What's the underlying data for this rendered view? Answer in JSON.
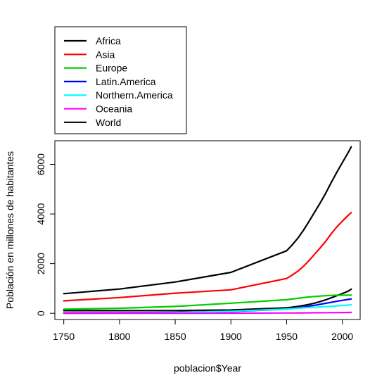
{
  "chart_data": {
    "type": "line",
    "title": "",
    "xlabel": "poblacion$Year",
    "ylabel": "Población en millones de habitantes",
    "x": [
      1750,
      1800,
      1850,
      1900,
      1950,
      1955,
      1960,
      1965,
      1970,
      1975,
      1980,
      1985,
      1990,
      1995,
      2000,
      2005,
      2008
    ],
    "xlim": [
      1742,
      2016
    ],
    "ylim": [
      -250,
      6950
    ],
    "xticks": [
      1750,
      1800,
      1850,
      1900,
      1950,
      2000
    ],
    "yticks": [
      0,
      2000,
      4000,
      6000
    ],
    "grid": false,
    "legend_position": "top-left",
    "series": [
      {
        "name": "Africa",
        "color": "#000000",
        "values": [
          106,
          107,
          111,
          133,
          221,
          247,
          277,
          314,
          357,
          408,
          469,
          541,
          622,
          707,
          796,
          888,
          973
        ]
      },
      {
        "name": "Asia",
        "color": "#ff0000",
        "values": [
          502,
          635,
          809,
          947,
          1402,
          1542,
          1694,
          1887,
          2120,
          2378,
          2626,
          2897,
          3202,
          3475,
          3714,
          3937,
          4054
        ]
      },
      {
        "name": "Europe",
        "color": "#00cd00",
        "values": [
          163,
          203,
          276,
          408,
          547,
          575,
          603,
          632,
          656,
          676,
          693,
          707,
          721,
          727,
          728,
          731,
          732
        ]
      },
      {
        "name": "Latin.America",
        "color": "#0000ff",
        "values": [
          16,
          24,
          38,
          74,
          167,
          190,
          218,
          251,
          285,
          323,
          362,
          402,
          443,
          483,
          521,
          557,
          577
        ]
      },
      {
        "name": "Northern.America",
        "color": "#00ffff",
        "values": [
          2,
          7,
          26,
          82,
          172,
          187,
          204,
          219,
          231,
          243,
          256,
          269,
          283,
          299,
          316,
          332,
          342
        ]
      },
      {
        "name": "Oceania",
        "color": "#ff00ff",
        "values": [
          2,
          2,
          2,
          6,
          12.8,
          14,
          15.9,
          17.5,
          19.7,
          21.3,
          23,
          24.8,
          27,
          29,
          31,
          34,
          35
        ]
      },
      {
        "name": "World",
        "color": "#000000",
        "values": [
          791,
          978,
          1262,
          1650,
          2519,
          2756,
          3021,
          3335,
          3692,
          4068,
          4435,
          4831,
          5264,
          5674,
          6071,
          6454,
          6707
        ]
      }
    ]
  }
}
